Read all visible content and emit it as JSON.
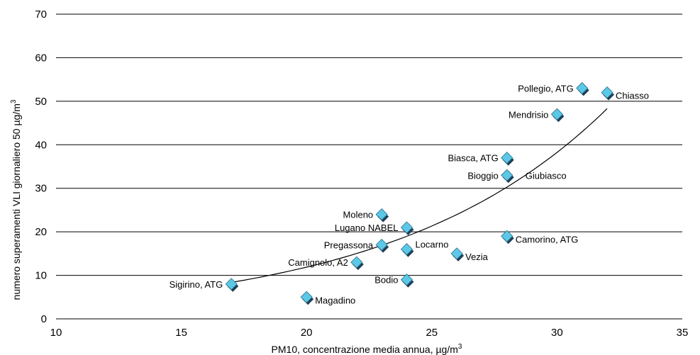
{
  "chart_data": {
    "type": "scatter",
    "title": "",
    "xlabel": "PM10, concentrazione media annua, µg/m",
    "xlabel_sup": "3",
    "ylabel": "numero superamenti VLI giornaliero 50 µg/m",
    "ylabel_sup": "3",
    "xlim": [
      10,
      35
    ],
    "ylim": [
      0,
      70
    ],
    "x_ticks": [
      10,
      15,
      20,
      25,
      30,
      35
    ],
    "y_ticks": [
      0,
      10,
      20,
      30,
      40,
      50,
      60,
      70
    ],
    "grid": "horizontal",
    "marker_color": "#5bc8e6",
    "points": [
      {
        "label": "Sigirino, ATG",
        "x": 17,
        "y": 8,
        "label_side": "left"
      },
      {
        "label": "Magadino",
        "x": 20,
        "y": 5,
        "label_side": "right"
      },
      {
        "label": "Camignolo, A2",
        "x": 22,
        "y": 13,
        "label_side": "left"
      },
      {
        "label": "Moleno",
        "x": 23,
        "y": 24,
        "label_side": "left"
      },
      {
        "label": "Pregassona",
        "x": 23,
        "y": 17,
        "label_side": "left"
      },
      {
        "label": "Lugano NABEL",
        "x": 24,
        "y": 21,
        "label_side": "left"
      },
      {
        "label": "Locarno",
        "x": 24,
        "y": 16,
        "label_side": "upright"
      },
      {
        "label": "Bodio",
        "x": 24,
        "y": 9,
        "label_side": "left"
      },
      {
        "label": "Vezia",
        "x": 26,
        "y": 15,
        "label_side": "right"
      },
      {
        "label": "Biasca, ATG",
        "x": 28,
        "y": 37,
        "label_side": "left"
      },
      {
        "label": "Bioggio",
        "x": 28,
        "y": 33,
        "label_side": "left"
      },
      {
        "label": "Giubiasco",
        "x": 28,
        "y": 33,
        "label_side": "farright"
      },
      {
        "label": "Camorino, ATG",
        "x": 28,
        "y": 19,
        "label_side": "right"
      },
      {
        "label": "Mendrisio",
        "x": 30,
        "y": 47,
        "label_side": "left"
      },
      {
        "label": "Pollegio, ATG",
        "x": 31,
        "y": 53,
        "label_side": "left"
      },
      {
        "label": "Chiasso",
        "x": 32,
        "y": 52,
        "label_side": "right"
      }
    ],
    "trendline": {
      "type": "exponential",
      "x_range": [
        17,
        32
      ],
      "a": 1.15,
      "b": 0.1168
    }
  }
}
